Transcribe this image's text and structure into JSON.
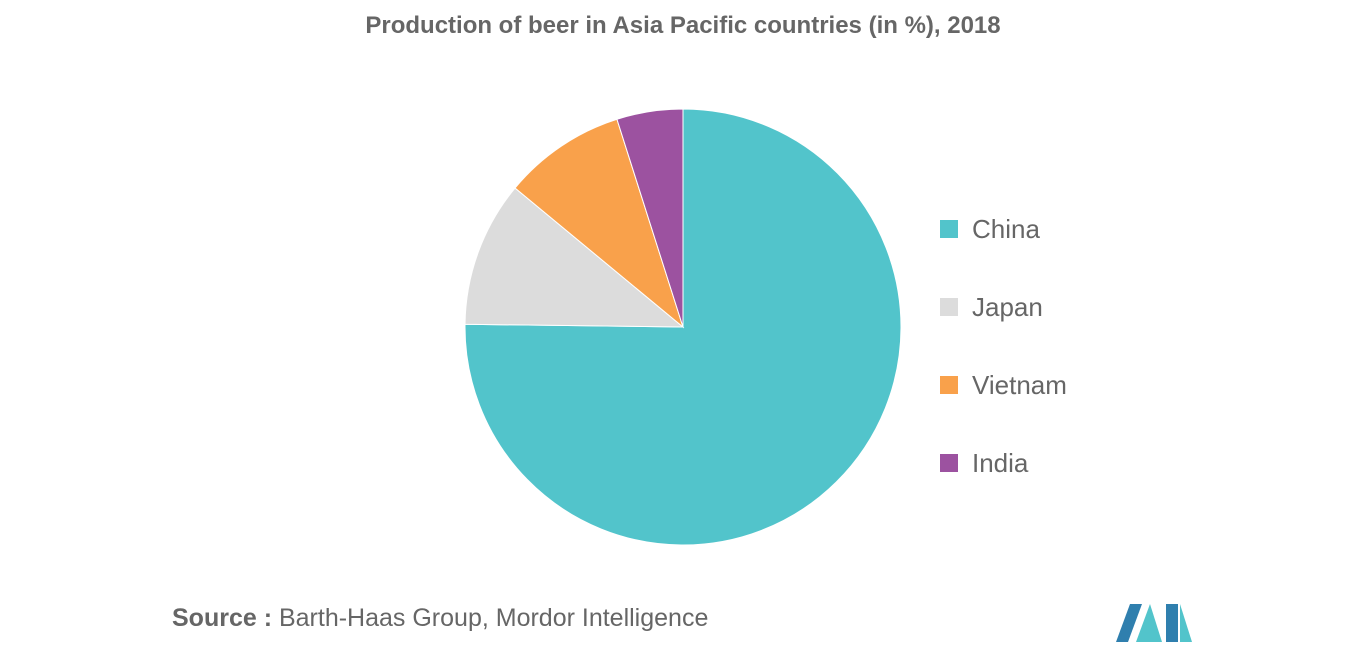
{
  "chart_data": {
    "type": "pie",
    "title": "Production of beer in Asia Pacific countries (in %), 2018",
    "slices": [
      {
        "label": "China",
        "value": 75.2,
        "color": "#52c4cb"
      },
      {
        "label": "Japan",
        "value": 10.8,
        "color": "#dcdcdc"
      },
      {
        "label": "Vietnam",
        "value": 9.1,
        "color": "#f9a14b"
      },
      {
        "label": "India",
        "value": 4.9,
        "color": "#9c52a0"
      }
    ],
    "legend_position": "right"
  },
  "source": {
    "label": "Source :",
    "text": " Barth-Haas Group, Mordor Intelligence"
  },
  "logo": {
    "colors": [
      "#2f7fae",
      "#52c4cb"
    ]
  }
}
